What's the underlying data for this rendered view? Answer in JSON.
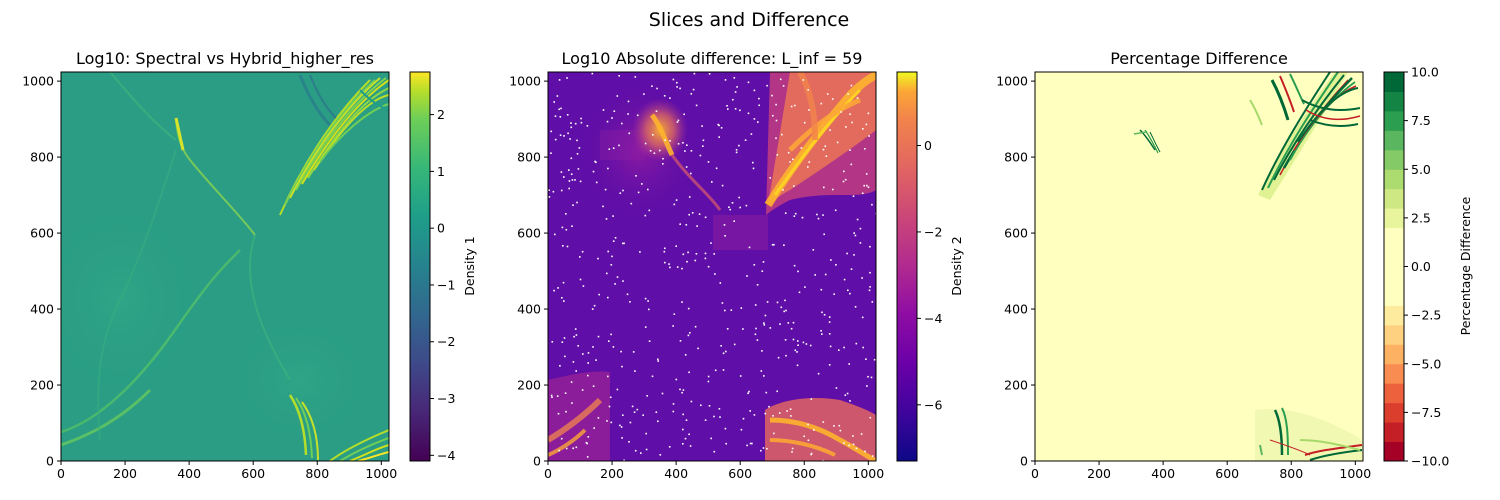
{
  "figure": {
    "title": "Slices and Difference"
  },
  "chart_data": [
    {
      "type": "heatmap",
      "title": "Log10: Spectral vs Hybrid_higher_res",
      "xlim": [
        0,
        1024
      ],
      "ylim": [
        0,
        1024
      ],
      "x_ticks": [
        0,
        200,
        400,
        600,
        800,
        1000
      ],
      "y_ticks": [
        0,
        200,
        400,
        600,
        800,
        1000
      ],
      "colormap": "viridis",
      "colorbar": {
        "label": "Density 1",
        "range": [
          -4.1,
          2.75
        ],
        "ticks": [
          2,
          1,
          0,
          -1,
          -2,
          -3,
          -4
        ],
        "tick_labels": [
          "2",
          "1",
          "0",
          "−1",
          "−2",
          "−3",
          "−4"
        ]
      }
    },
    {
      "type": "heatmap",
      "title": "Log10 Absolute difference: L_inf = 59",
      "xlim": [
        0,
        1024
      ],
      "ylim": [
        0,
        1024
      ],
      "x_ticks": [
        0,
        200,
        400,
        600,
        800,
        1000
      ],
      "y_ticks": [
        0,
        200,
        400,
        600,
        800,
        1000
      ],
      "colormap": "plasma",
      "colorbar": {
        "label": "Density 2",
        "range": [
          -7.3,
          1.7
        ],
        "ticks": [
          0,
          -2,
          -4,
          -6
        ],
        "tick_labels": [
          "0",
          "−2",
          "−4",
          "−6"
        ]
      }
    },
    {
      "type": "heatmap",
      "title": "Percentage Difference",
      "xlim": [
        0,
        1024
      ],
      "ylim": [
        0,
        1024
      ],
      "x_ticks": [
        0,
        200,
        400,
        600,
        800,
        1000
      ],
      "y_ticks": [
        0,
        200,
        400,
        600,
        800,
        1000
      ],
      "colormap": "RdYlGn",
      "colorbar": {
        "label": "Percentage Difference",
        "range": [
          -10,
          10
        ],
        "levels": 20,
        "ticks": [
          10,
          7.5,
          5,
          2.5,
          0,
          -2.5,
          -5,
          -7.5,
          -10
        ],
        "tick_labels": [
          "10.0",
          "7.5",
          "5.0",
          "2.5",
          "0.0",
          "−2.5",
          "−5.0",
          "−7.5",
          "−10.0"
        ],
        "discrete_colors": [
          "#a50026",
          "#c41e27",
          "#dc3e2d",
          "#ee613d",
          "#f88c51",
          "#fcb163",
          "#fdd180",
          "#feeb9d",
          "#ffffbf",
          "#ffffbf",
          "#ffffbf",
          "#ffffbf",
          "#e9f59c",
          "#cee983",
          "#acdc6f",
          "#84ca66",
          "#5ab760",
          "#2c9e50",
          "#138443",
          "#006837"
        ]
      }
    }
  ],
  "colors": {
    "viridis_bg": "#2a9d84",
    "viridis_bright": "#bfdc2a",
    "viridis_yellow": "#fde725",
    "plasma_bg": "#5f0ea7",
    "plasma_mid": "#c23d80",
    "plasma_hot": "#fdb42e",
    "rdylgn_neutral": "#ffffbf",
    "rdylgn_green": "#006837",
    "rdylgn_red": "#c41e27"
  }
}
